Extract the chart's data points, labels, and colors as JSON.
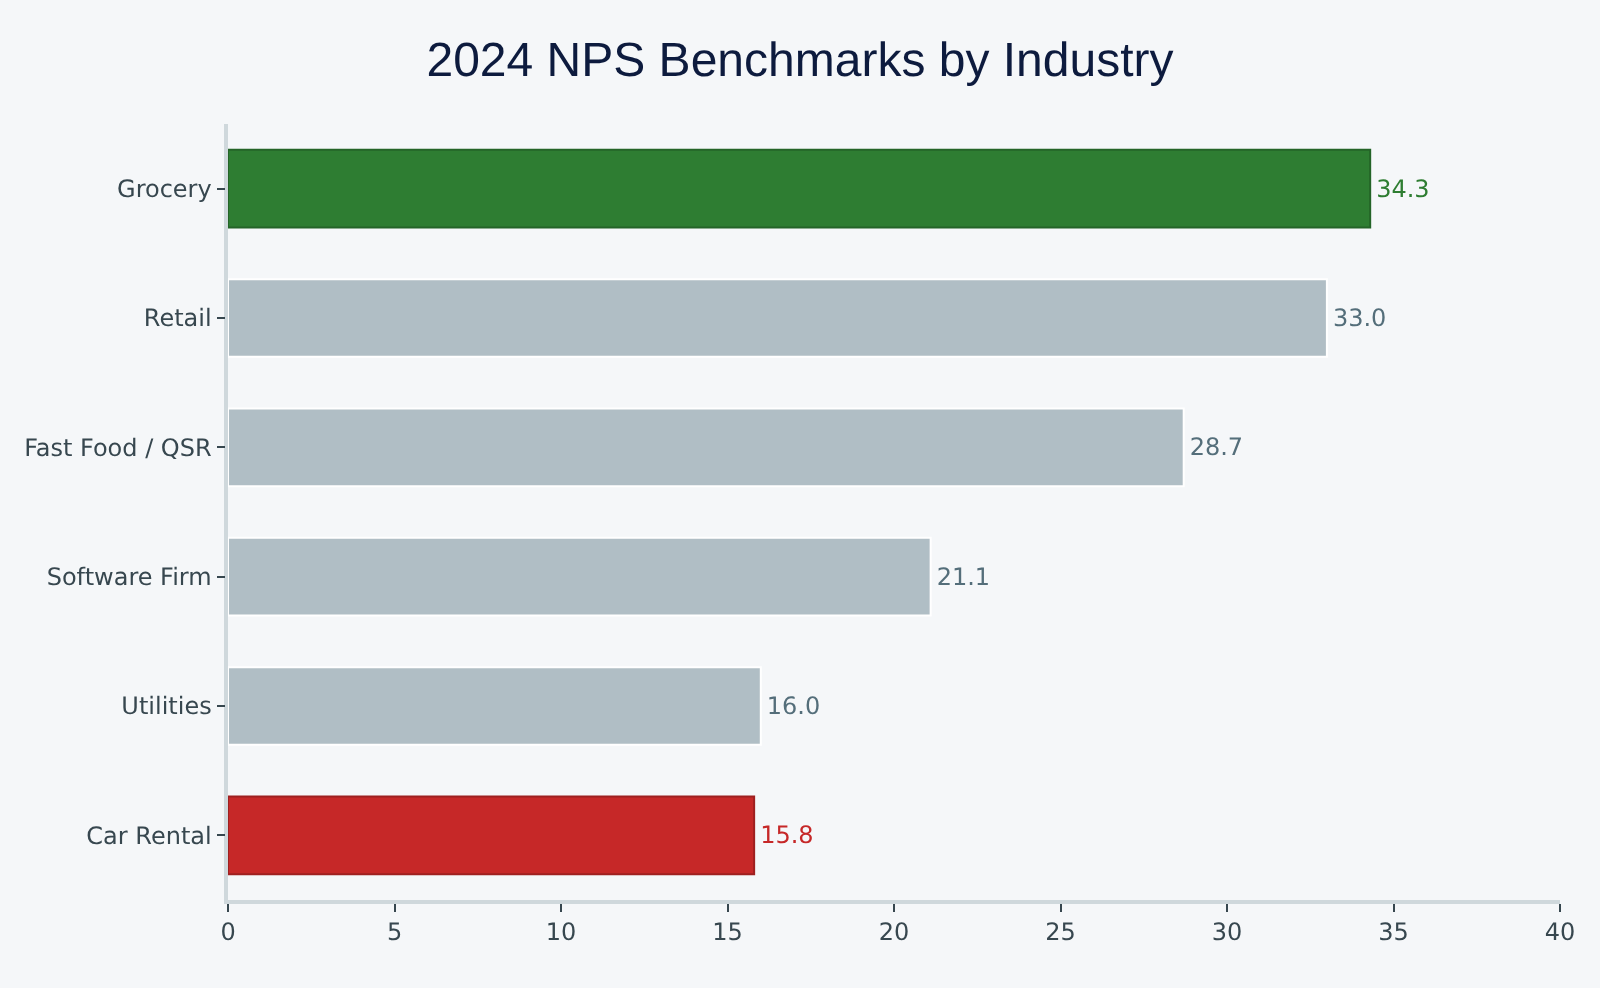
{
  "chart_data": {
    "type": "bar",
    "orientation": "horizontal",
    "title": "2024 NPS Benchmarks by Industry",
    "categories": [
      "Grocery",
      "Retail",
      "Fast Food / QSR",
      "Software Firm",
      "Utilities",
      "Car Rental"
    ],
    "values": [
      34.3,
      33.0,
      28.7,
      21.1,
      16.0,
      15.8
    ],
    "colors": [
      "#2e7d32",
      "#b0bec5",
      "#b0bec5",
      "#b0bec5",
      "#b0bec5",
      "#c62828"
    ],
    "value_labels": [
      "34.3",
      "33.0",
      "28.7",
      "21.1",
      "16.0",
      "15.8"
    ],
    "xlim": [
      0,
      40
    ],
    "xticks": [
      0,
      5,
      10,
      15,
      20,
      25,
      30,
      35,
      40
    ]
  }
}
